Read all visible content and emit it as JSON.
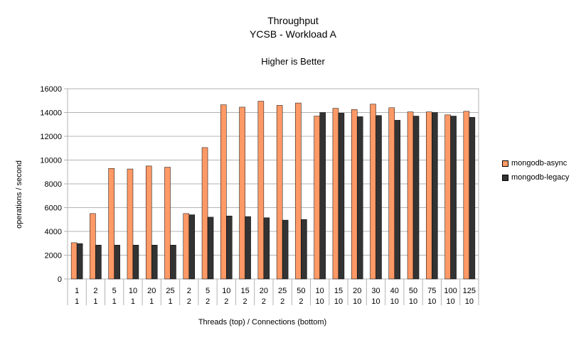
{
  "chart_data": {
    "type": "bar",
    "title": "Throughput",
    "subtitle": "YCSB - Workload A",
    "annotation": "Higher is Better",
    "xlabel": "Threads (top) / Connections (bottom)",
    "ylabel": "operations / second",
    "ylim": [
      0,
      16000
    ],
    "yticks": [
      0,
      2000,
      4000,
      6000,
      8000,
      10000,
      12000,
      14000,
      16000
    ],
    "grid": true,
    "legend_position": "right",
    "categories_top": [
      "1",
      "2",
      "5",
      "10",
      "20",
      "25",
      "2",
      "5",
      "10",
      "15",
      "20",
      "25",
      "50",
      "10",
      "15",
      "20",
      "30",
      "40",
      "50",
      "75",
      "100",
      "125"
    ],
    "categories_bottom": [
      "1",
      "1",
      "1",
      "1",
      "1",
      "1",
      "2",
      "2",
      "2",
      "2",
      "2",
      "2",
      "2",
      "10",
      "10",
      "10",
      "10",
      "10",
      "10",
      "10",
      "10",
      "10"
    ],
    "series": [
      {
        "name": "mongodb-async",
        "color": "#ff9966",
        "values": [
          3050,
          5500,
          9300,
          9250,
          9500,
          9400,
          5500,
          11050,
          14650,
          14450,
          14950,
          14600,
          14800,
          13700,
          14350,
          14250,
          14700,
          14400,
          14050,
          14050,
          13800,
          14100
        ]
      },
      {
        "name": "mongodb-legacy",
        "color": "#333333",
        "values": [
          2980,
          2850,
          2850,
          2850,
          2850,
          2850,
          5400,
          5200,
          5300,
          5250,
          5150,
          4950,
          5000,
          14000,
          13950,
          13650,
          13750,
          13350,
          13700,
          14000,
          13700,
          13600
        ]
      }
    ]
  }
}
